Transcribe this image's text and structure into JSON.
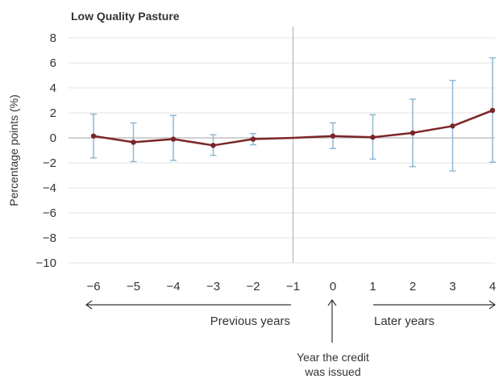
{
  "chart_data": {
    "type": "line",
    "title": "Low Quality Pasture",
    "ylabel": "Percentage points (%)",
    "xlabel": "",
    "x": [
      -6,
      -5,
      -4,
      -3,
      -2,
      -1,
      0,
      1,
      2,
      3,
      4
    ],
    "xlim": [
      -6,
      4
    ],
    "ylim": [
      -10,
      8
    ],
    "yticks": [
      8,
      6,
      4,
      2,
      0,
      -2,
      -4,
      -6,
      -8,
      -10
    ],
    "ytick_labels": [
      "8",
      "6",
      "4",
      "2",
      "0",
      "−2",
      "−4",
      "−6",
      "−8",
      "−10"
    ],
    "xtick_labels": [
      "−6",
      "−5",
      "−4",
      "−3",
      "−2",
      "−1",
      "0",
      "1",
      "2",
      "3",
      "4"
    ],
    "grid": true,
    "series": [
      {
        "name": "",
        "color": "#7b2529",
        "values": [
          0.15,
          -0.35,
          -0.1,
          -0.6,
          -0.1,
          0.0,
          0.15,
          0.05,
          0.4,
          0.95,
          2.2
        ],
        "ci_lower": [
          -1.6,
          -1.9,
          -1.8,
          -1.4,
          -0.55,
          null,
          -0.85,
          -1.7,
          -2.3,
          -2.65,
          -1.95
        ],
        "ci_upper": [
          1.9,
          1.2,
          1.8,
          0.25,
          0.35,
          null,
          1.2,
          1.85,
          3.1,
          4.6,
          6.4
        ]
      }
    ],
    "errorbar_color": "#8fb8d4",
    "reference_line_x": -1,
    "annotations": {
      "previous": "Previous years",
      "later": "Later years",
      "issued_line1": "Year the credit",
      "issued_line2": "was issued"
    }
  }
}
